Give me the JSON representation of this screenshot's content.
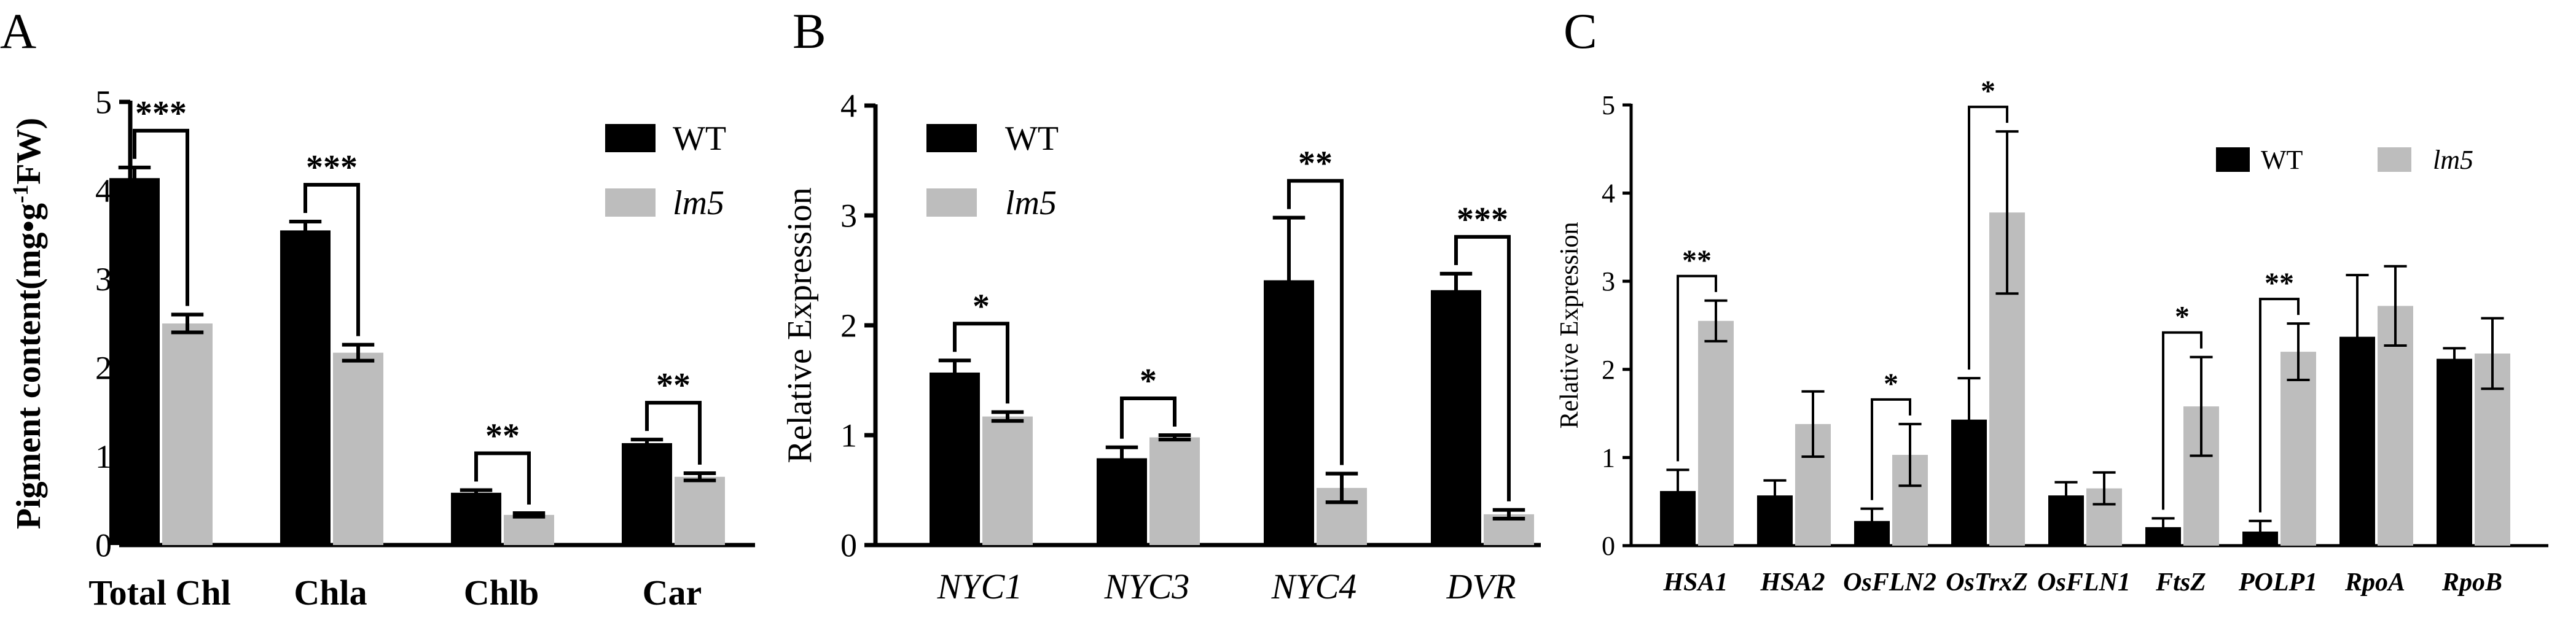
{
  "chart_data": [
    {
      "panel": "A",
      "type": "bar",
      "title": "",
      "xlabel": "",
      "ylabel": "Pigment content(mg•g⁻¹FW)",
      "ylabel_parts": [
        "Pigment content(mg•g",
        "-1",
        "FW)"
      ],
      "ylim": [
        0,
        5
      ],
      "yticks": [
        0,
        1,
        2,
        3,
        4,
        5
      ],
      "categories": [
        "Total Chl",
        "Chla",
        "Chlb",
        "Car"
      ],
      "category_style": "bold",
      "series": [
        {
          "name": "WT",
          "color": "#000000",
          "values": [
            4.14,
            3.55,
            0.59,
            1.15
          ],
          "errors": [
            0.12,
            0.1,
            0.03,
            0.04
          ]
        },
        {
          "name": "lm5",
          "color": "#bdbdbd",
          "values": [
            2.5,
            2.17,
            0.34,
            0.77
          ],
          "errors": [
            0.1,
            0.09,
            0.02,
            0.04
          ]
        }
      ],
      "significance": [
        "***",
        "***",
        "**",
        "**"
      ],
      "legend": {
        "position": "top-right",
        "entries": [
          "WT",
          "lm5"
        ]
      }
    },
    {
      "panel": "B",
      "type": "bar",
      "title": "",
      "xlabel": "",
      "ylabel": "Relative Expression",
      "ylim": [
        0,
        4
      ],
      "yticks": [
        0,
        1,
        2,
        3,
        4
      ],
      "categories": [
        "NYC1",
        "NYC3",
        "NYC4",
        "DVR"
      ],
      "category_style": "italic",
      "series": [
        {
          "name": "WT",
          "color": "#000000",
          "values": [
            1.57,
            0.79,
            2.41,
            2.32
          ],
          "errors": [
            0.11,
            0.1,
            0.57,
            0.15
          ]
        },
        {
          "name": "lm5",
          "color": "#bdbdbd",
          "values": [
            1.17,
            0.98,
            0.52,
            0.28
          ],
          "errors": [
            0.04,
            0.02,
            0.13,
            0.04
          ]
        }
      ],
      "significance": [
        "*",
        "*",
        "**",
        "***"
      ],
      "legend": {
        "position": "top-left",
        "entries": [
          "WT",
          "lm5"
        ]
      }
    },
    {
      "panel": "C",
      "type": "bar",
      "title": "",
      "xlabel": "",
      "ylabel": "Relative Expression",
      "ylim": [
        0,
        5
      ],
      "yticks": [
        0,
        1,
        2,
        3,
        4,
        5
      ],
      "categories": [
        "HSA1",
        "HSA2",
        "OsFLN2",
        "OsTrxZ",
        "OsFLN1",
        "FtsZ",
        "POLP1",
        "RpoA",
        "RpoB"
      ],
      "category_style": "bold-italic",
      "series": [
        {
          "name": "WT",
          "color": "#000000",
          "values": [
            0.62,
            0.57,
            0.28,
            1.43,
            0.57,
            0.21,
            0.16,
            2.37,
            2.12
          ],
          "errors": [
            0.24,
            0.17,
            0.14,
            0.47,
            0.15,
            0.1,
            0.12,
            0.7,
            0.12
          ]
        },
        {
          "name": "lm5",
          "color": "#bdbdbd",
          "values": [
            2.55,
            1.38,
            1.03,
            3.78,
            0.65,
            1.58,
            2.2,
            2.72,
            2.18
          ],
          "errors": [
            0.23,
            0.37,
            0.35,
            0.92,
            0.18,
            0.56,
            0.32,
            0.45,
            0.4
          ]
        }
      ],
      "significance": [
        "**",
        "",
        "*",
        "*",
        "",
        "*",
        "**",
        "",
        ""
      ],
      "legend": {
        "position": "top-right",
        "entries": [
          "WT",
          "lm5"
        ]
      }
    }
  ]
}
